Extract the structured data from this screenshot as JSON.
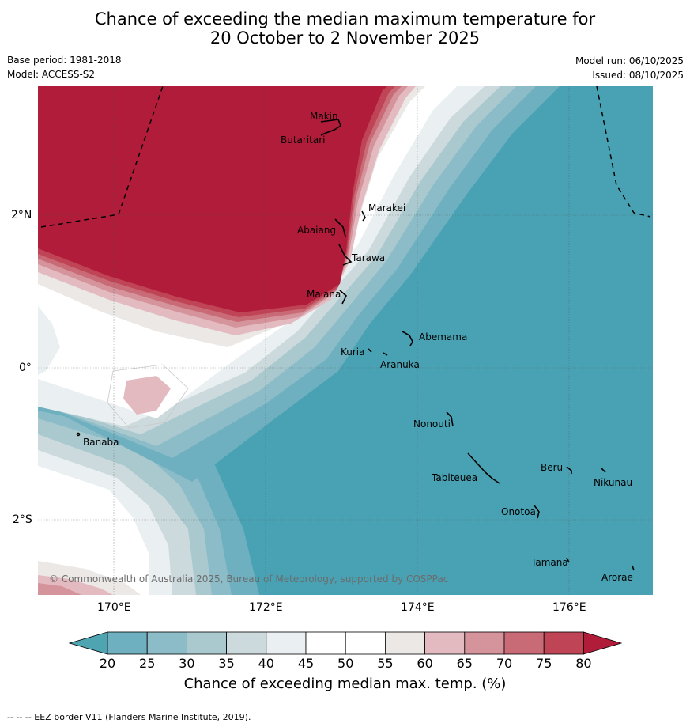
{
  "title": {
    "line1": "Chance of exceeding the median maximum temperature for",
    "line2": "20 October to 2 November 2025"
  },
  "meta": {
    "base_period": "Base period: 1981-2018",
    "model": "Model: ACCESS-S2",
    "model_run": "Model run: 06/10/2025",
    "issued": "Issued: 08/10/2025"
  },
  "map": {
    "lat_labels": [
      "2°N",
      "0°",
      "2°S"
    ],
    "lon_labels": [
      "170°E",
      "172°E",
      "174°E",
      "176°E"
    ],
    "places": [
      "Makin",
      "Butaritari",
      "Marakei",
      "Abaiang",
      "Tarawa",
      "Maiana",
      "Abemama",
      "Kuria",
      "Aranuka",
      "Banaba",
      "Nonouti",
      "Tabiteuea",
      "Beru",
      "Nikunau",
      "Onotoa",
      "Tamana",
      "Arorae"
    ],
    "copyright": "© Commonwealth of Australia 2025, Bureau of Meteorology, supported by COSPPac"
  },
  "colorbar": {
    "labels": [
      "20",
      "25",
      "30",
      "35",
      "40",
      "45",
      "50",
      "55",
      "60",
      "65",
      "70",
      "75",
      "80"
    ],
    "colors": {
      "below20": "#4ea4b1",
      "c20_25": "#6eb0bf",
      "c25_30": "#8cbcc7",
      "c30_35": "#a9c9cf",
      "c35_40": "#cddadd",
      "c40_45": "#eaf0f2",
      "c45_50": "#ffffff",
      "c50_55": "#ffffff",
      "c55_60": "#ebe8e6",
      "c60_65": "#e2bac0",
      "c65_70": "#d5939b",
      "c70_75": "#c96b76",
      "c75_80": "#bf4556",
      "above80": "#b01c39"
    },
    "title": "Chance of exceeding median max. temp. (%)"
  },
  "footer": "--  --  -- EEZ border V11 (Flanders Marine Institute, 2019)."
}
